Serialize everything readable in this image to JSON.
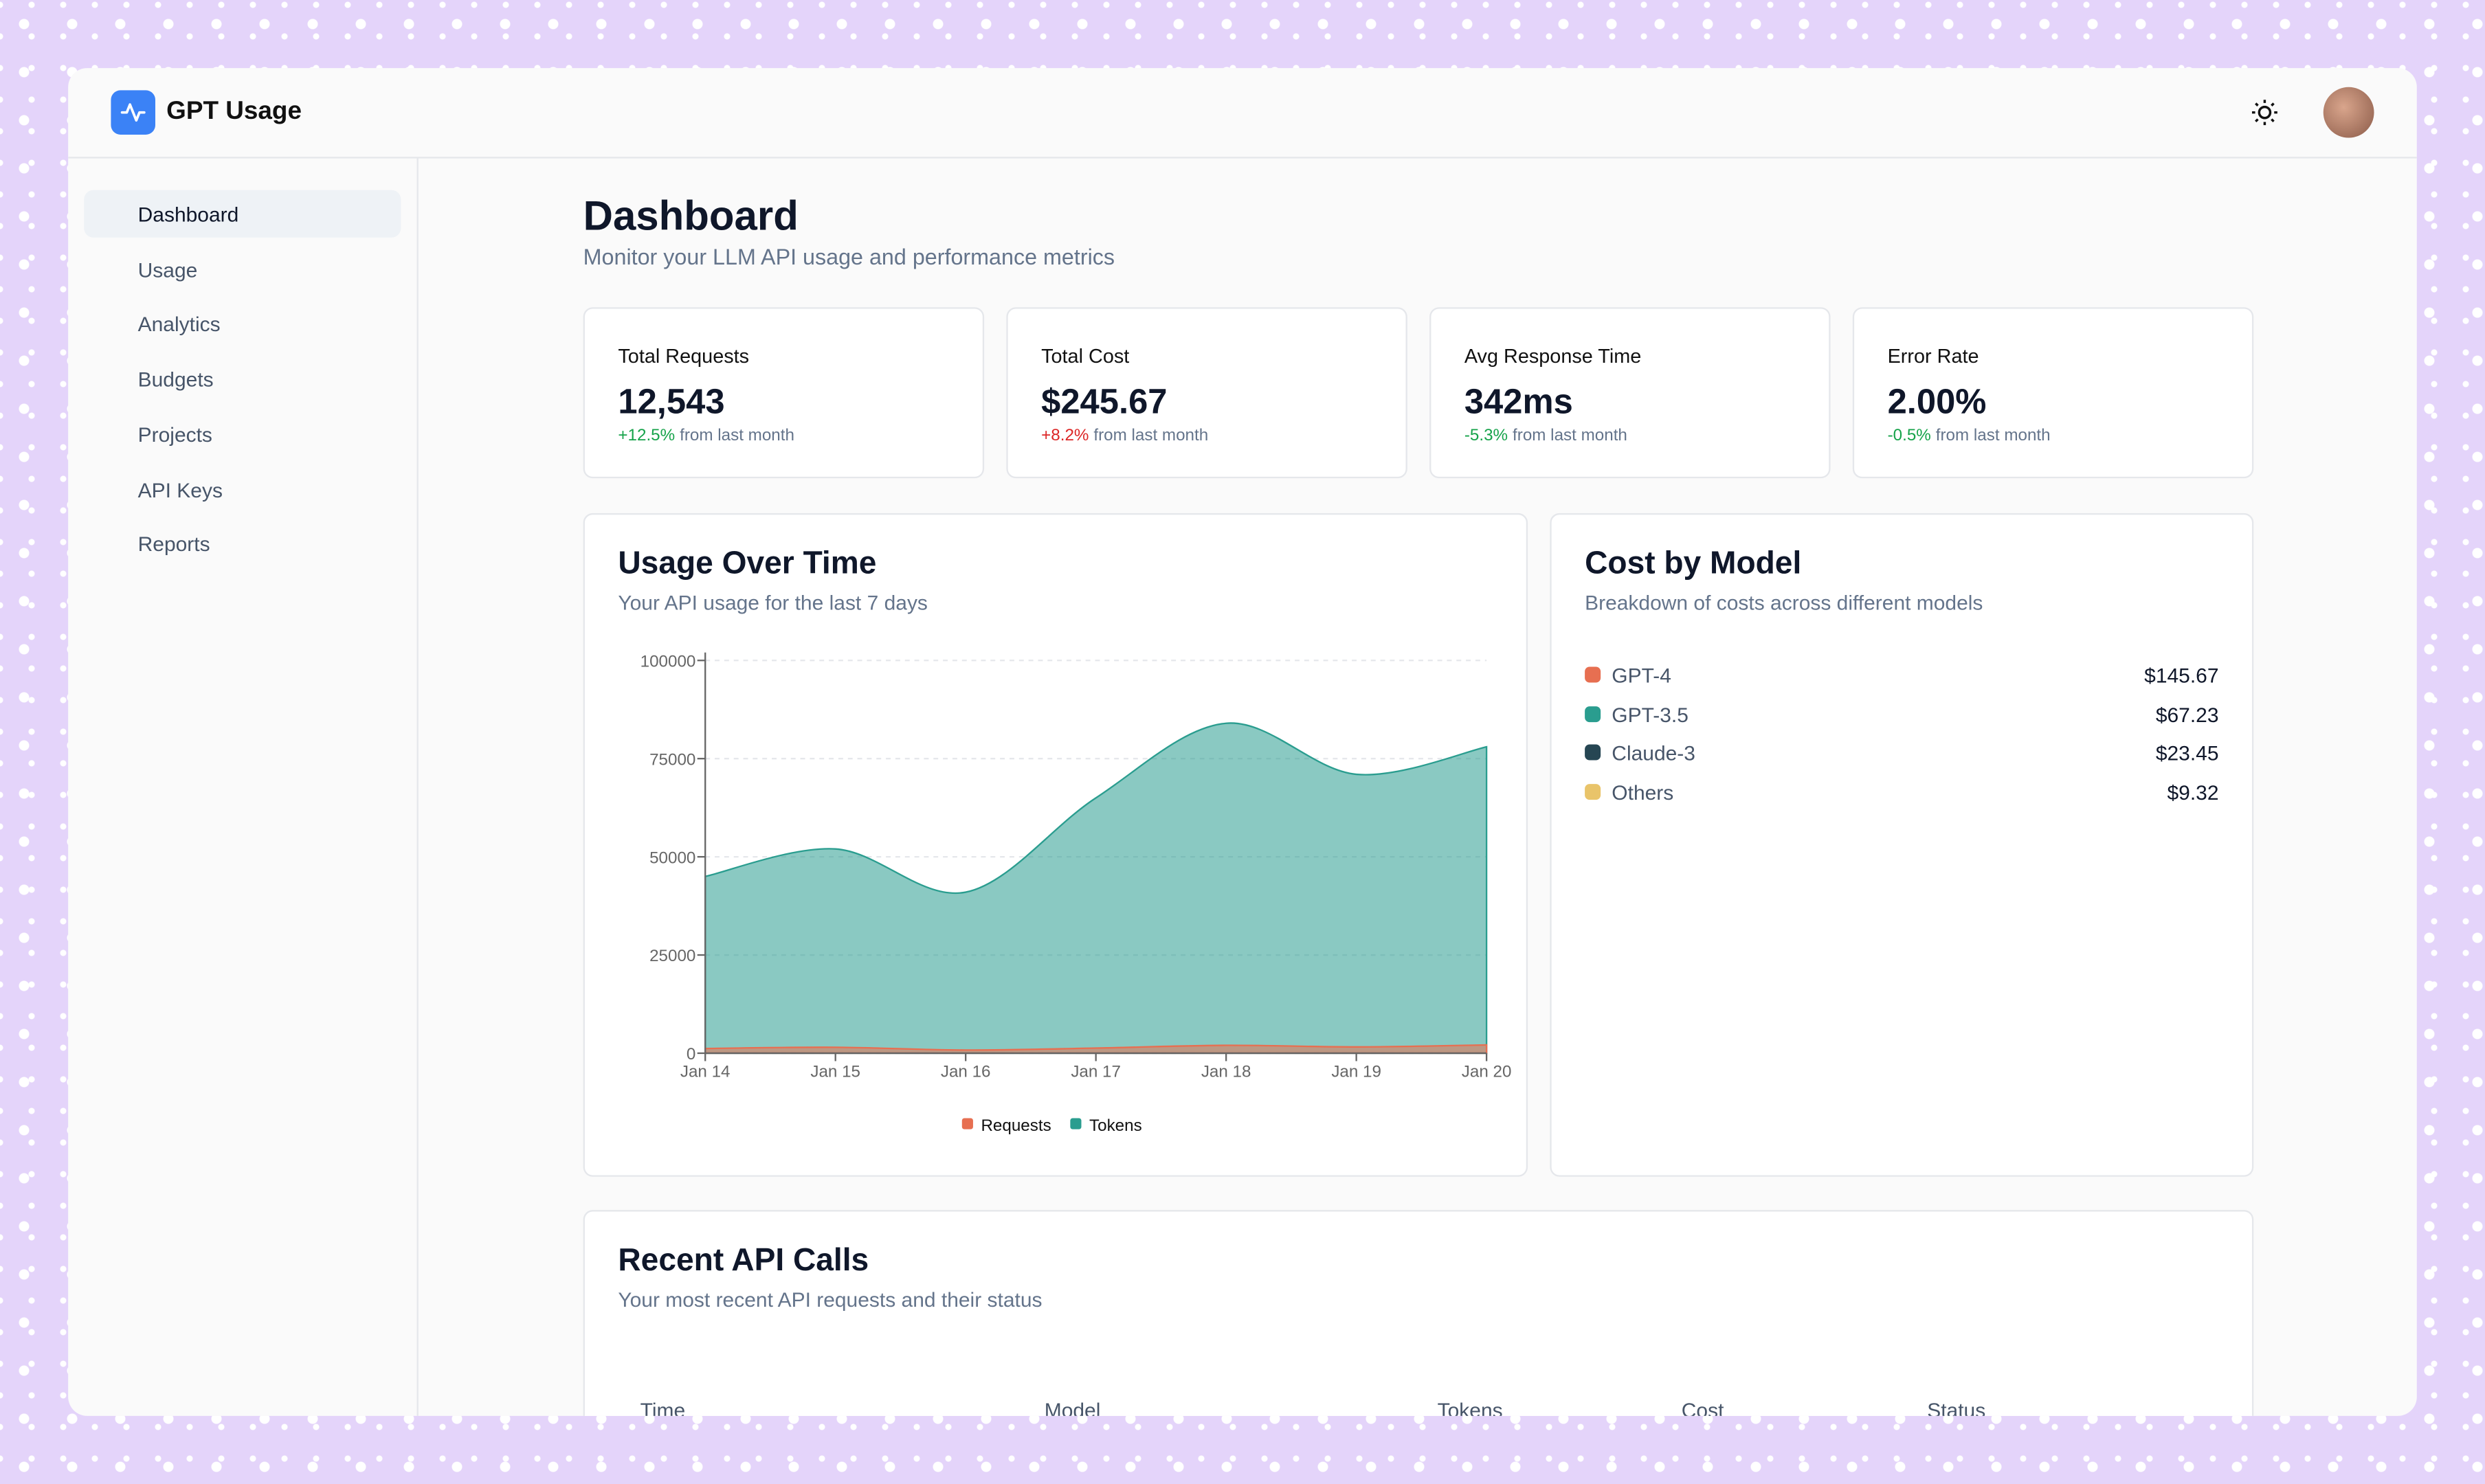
{
  "header": {
    "title": "GPT Usage"
  },
  "sidebar": {
    "items": [
      "Dashboard",
      "Usage",
      "Analytics",
      "Budgets",
      "Projects",
      "API Keys",
      "Reports"
    ]
  },
  "page": {
    "title": "Dashboard",
    "subtitle": "Monitor your LLM API usage and performance metrics"
  },
  "stats": [
    {
      "label": "Total Requests",
      "value": "12,543",
      "change": "+12.5%",
      "change_color": "#16a34a",
      "note": "from last month"
    },
    {
      "label": "Total Cost",
      "value": "$245.67",
      "change": "+8.2%",
      "change_color": "#dc2626",
      "note": "from last month"
    },
    {
      "label": "Avg Response Time",
      "value": "342ms",
      "change": "-5.3%",
      "change_color": "#16a34a",
      "note": "from last month"
    },
    {
      "label": "Error Rate",
      "value": "2.00%",
      "change": "-0.5%",
      "change_color": "#16a34a",
      "note": "from last month"
    }
  ],
  "usage_chart": {
    "type": "area",
    "title": "Usage Over Time",
    "subtitle": "Your API usage for the last 7 days",
    "x": [
      "Jan 14",
      "Jan 15",
      "Jan 16",
      "Jan 17",
      "Jan 18",
      "Jan 19",
      "Jan 20"
    ],
    "series": [
      {
        "name": "Requests",
        "color": "#e76f51",
        "values": [
          1200,
          1500,
          800,
          1300,
          2000,
          1600,
          2100
        ]
      },
      {
        "name": "Tokens",
        "color": "#2a9d8f",
        "values": [
          45000,
          52000,
          41000,
          65000,
          84000,
          71000,
          78000
        ]
      }
    ],
    "ylim": [
      0,
      100000
    ],
    "yticks": [
      0,
      25000,
      50000,
      75000,
      100000
    ],
    "grid": true
  },
  "cost_by_model": {
    "title": "Cost by Model",
    "subtitle": "Breakdown of costs across different models",
    "models": [
      {
        "name": "GPT-4",
        "color": "#e76f51",
        "cost": "$145.67"
      },
      {
        "name": "GPT-3.5",
        "color": "#2a9d8f",
        "cost": "$67.23"
      },
      {
        "name": "Claude-3",
        "color": "#264653",
        "cost": "$23.45"
      },
      {
        "name": "Others",
        "color": "#e9c46a",
        "cost": "$9.32"
      }
    ]
  },
  "recent_calls": {
    "title": "Recent API Calls",
    "subtitle": "Your most recent API requests and their status",
    "columns": [
      "Time",
      "Model",
      "Tokens",
      "Cost",
      "Status"
    ]
  }
}
